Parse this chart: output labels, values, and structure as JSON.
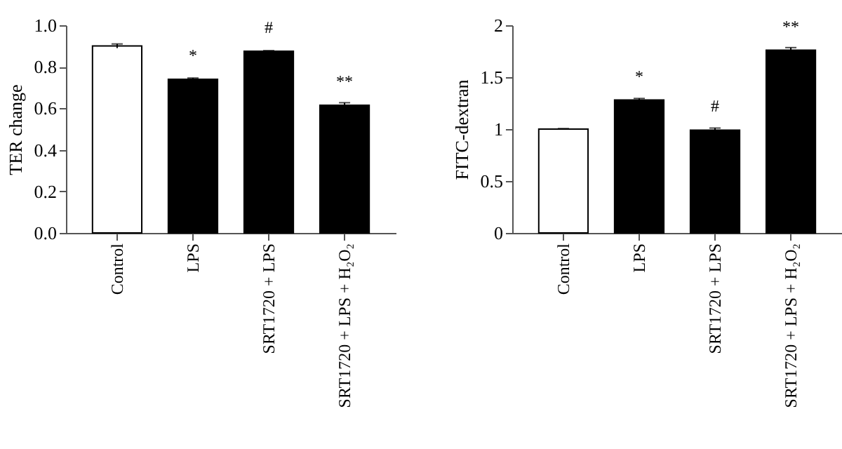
{
  "chart_data": [
    {
      "type": "bar",
      "ylabel": "TER change",
      "categories": [
        "Control",
        "LPS",
        "SRT1720 + LPS",
        "SRT1720 + LPS + H₂O₂"
      ],
      "values": [
        0.9,
        0.74,
        0.875,
        0.615
      ],
      "errors": [
        0.01,
        0.006,
        0.003,
        0.012
      ],
      "colors": [
        "#ffffff",
        "#000000",
        "#000000",
        "#000000"
      ],
      "ylim": [
        0,
        1
      ],
      "yticks": [
        {
          "value": 0,
          "label": "0.0"
        },
        0.2,
        0.4,
        0.6,
        0.8,
        {
          "value": 1,
          "label": "1.0"
        }
      ],
      "grid": false,
      "annotations": [
        {
          "text": "*",
          "x": "LPS",
          "y": 0.74
        },
        {
          "text": "#",
          "x": "SRT1720 + LPS",
          "y": 0.875
        },
        {
          "text": "**",
          "x": "SRT1720 + LPS + H₂O₂",
          "y": 0.615
        }
      ]
    },
    {
      "type": "bar",
      "ylabel": "FITC-dextran",
      "categories": [
        "Control",
        "LPS",
        "SRT1720 + LPS",
        "SRT1720 + LPS + H₂O₂"
      ],
      "values": [
        1.0,
        1.28,
        0.99,
        1.76
      ],
      "errors": [
        0.005,
        0.015,
        0.02,
        0.025
      ],
      "colors": [
        "#ffffff",
        "#000000",
        "#000000",
        "#000000"
      ],
      "ylim": [
        0,
        2
      ],
      "yticks": [
        0,
        0.5,
        1,
        1.5,
        2
      ],
      "grid": false,
      "annotations": [
        {
          "text": "*",
          "x": "LPS",
          "y": 1.28
        },
        {
          "text": "#",
          "x": "SRT1720 + LPS",
          "y": 0.99
        },
        {
          "text": "**",
          "x": "SRT1720 + LPS + H₂O₂",
          "y": 1.76
        }
      ]
    }
  ]
}
